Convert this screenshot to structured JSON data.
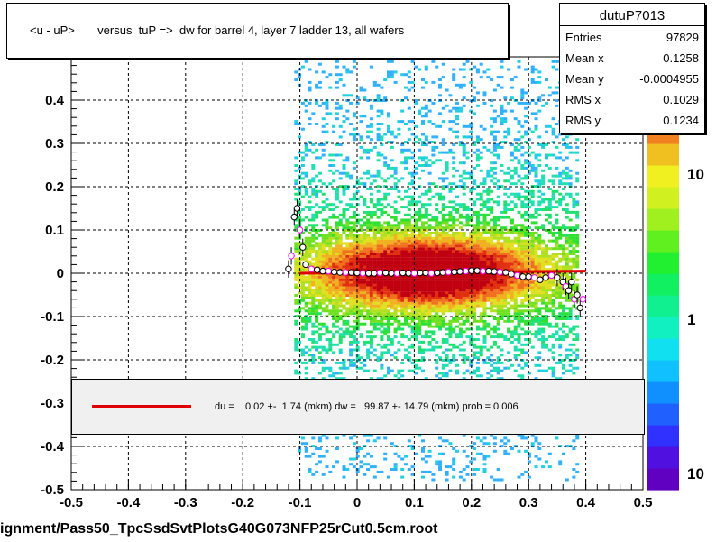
{
  "title": "<u - uP>       versus  tuP =>  dw for barrel 4, layer 7 ladder 13, all wafers",
  "stats": {
    "name": "dutuP7013",
    "rows": [
      {
        "k": "Entries",
        "v": "97829"
      },
      {
        "k": "Mean x",
        "v": "0.1258"
      },
      {
        "k": "Mean y",
        "v": "-0.0004955"
      },
      {
        "k": "RMS x",
        "v": "0.1029"
      },
      {
        "k": "RMS y",
        "v": "0.1234"
      }
    ]
  },
  "fit_text": "du =    0.02 +-  1.74 (mkm) dw =   99.87 +- 14.79 (mkm) prob = 0.006",
  "filename": "ignment/Pass50_TpcSsdSvtPlotsG40G073NFP25rCut0.5cm.root",
  "colors": {
    "fit_line": "#e00000",
    "profile_marker": "#000000",
    "accent_marker": "#ff00ff"
  },
  "chart_data": {
    "type": "heatmap",
    "x_ticks": [
      "-0.5",
      "-0.4",
      "-0.3",
      "-0.2",
      "-0.1",
      "0",
      "0.1",
      "0.2",
      "0.3",
      "0.4",
      "0.5"
    ],
    "y_ticks": [
      "-0.5",
      "-0.4",
      "-0.3",
      "-0.2",
      "-0.1",
      "0",
      "0.1",
      "0.2",
      "0.3",
      "0.4"
    ],
    "xlim": [
      -0.5,
      0.5
    ],
    "ylim": [
      -0.5,
      0.5
    ],
    "z_scale": "log",
    "z_labels": [
      "10",
      "1",
      "10"
    ],
    "grid": true,
    "fit_line": {
      "x": [
        -0.1,
        0.4
      ],
      "y": [
        0.0,
        0.005
      ]
    },
    "profile": {
      "x": [
        -0.12,
        -0.115,
        -0.11,
        -0.105,
        -0.1,
        -0.095,
        -0.09,
        -0.08,
        -0.07,
        -0.06,
        -0.05,
        -0.04,
        -0.03,
        -0.02,
        -0.01,
        0.0,
        0.01,
        0.02,
        0.03,
        0.04,
        0.05,
        0.06,
        0.07,
        0.08,
        0.09,
        0.1,
        0.11,
        0.12,
        0.13,
        0.14,
        0.15,
        0.16,
        0.17,
        0.18,
        0.19,
        0.2,
        0.21,
        0.22,
        0.23,
        0.24,
        0.25,
        0.26,
        0.27,
        0.28,
        0.29,
        0.3,
        0.31,
        0.32,
        0.33,
        0.34,
        0.35,
        0.36,
        0.365,
        0.37,
        0.375,
        0.38,
        0.385,
        0.39,
        0.395
      ],
      "y": [
        0.01,
        0.04,
        0.13,
        0.15,
        0.1,
        0.06,
        0.02,
        0.01,
        0.008,
        0.005,
        0.005,
        0.003,
        0.002,
        0.002,
        0.002,
        0.001,
        0.0,
        0.0,
        0.0,
        0.001,
        0.001,
        0.0,
        0.0,
        0.001,
        0.0,
        0.0,
        0.001,
        0.001,
        0.0,
        0.001,
        0.002,
        0.003,
        0.003,
        0.004,
        0.005,
        0.006,
        0.006,
        0.005,
        0.005,
        0.004,
        0.003,
        0.002,
        -0.002,
        -0.005,
        -0.008,
        -0.008,
        -0.01,
        -0.015,
        -0.01,
        -0.005,
        -0.01,
        -0.02,
        -0.03,
        -0.04,
        -0.02,
        -0.06,
        -0.05,
        -0.08,
        -0.06
      ]
    }
  }
}
